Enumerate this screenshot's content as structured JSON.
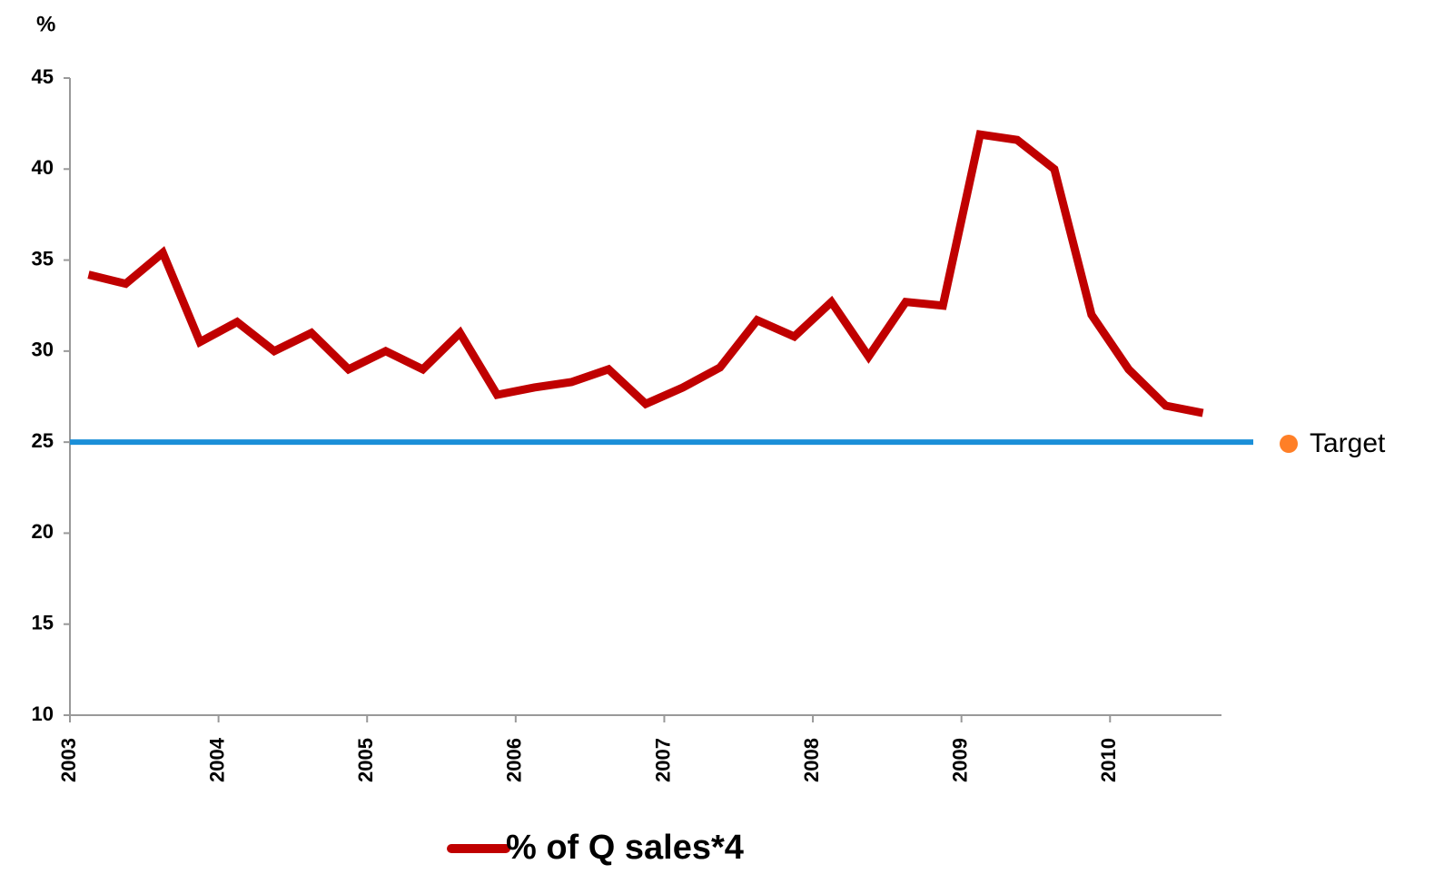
{
  "chart_data": {
    "type": "line",
    "y_label": "%",
    "x": [
      2003.125,
      2003.375,
      2003.625,
      2003.875,
      2004.125,
      2004.375,
      2004.625,
      2004.875,
      2005.125,
      2005.375,
      2005.625,
      2005.875,
      2006.125,
      2006.375,
      2006.625,
      2006.875,
      2007.125,
      2007.375,
      2007.625,
      2007.875,
      2008.125,
      2008.375,
      2008.625,
      2008.875,
      2009.125,
      2009.375,
      2009.625,
      2009.875,
      2010.125,
      2010.375,
      2010.625
    ],
    "series": [
      {
        "name": "% of Q sales*4",
        "color": "#c00000",
        "values": [
          34.2,
          33.7,
          35.4,
          30.5,
          31.6,
          30.0,
          31.0,
          29.0,
          30.0,
          29.0,
          31.0,
          27.6,
          28.0,
          28.3,
          29.0,
          27.1,
          28.0,
          29.1,
          31.7,
          30.8,
          32.7,
          29.7,
          32.7,
          32.5,
          41.9,
          41.6,
          40.0,
          32.0,
          29.0,
          27.0,
          26.6
        ]
      }
    ],
    "target": {
      "name": "Target",
      "value": 25,
      "color": "#1b8fd8",
      "legend_color": "#ff7f27"
    },
    "xlim": [
      2003,
      2010.75
    ],
    "xticks": [
      2003,
      2004,
      2005,
      2006,
      2007,
      2008,
      2009,
      2010
    ],
    "ylim": [
      10,
      45
    ],
    "yticks": [
      10,
      15,
      20,
      25,
      30,
      35,
      40,
      45
    ]
  }
}
